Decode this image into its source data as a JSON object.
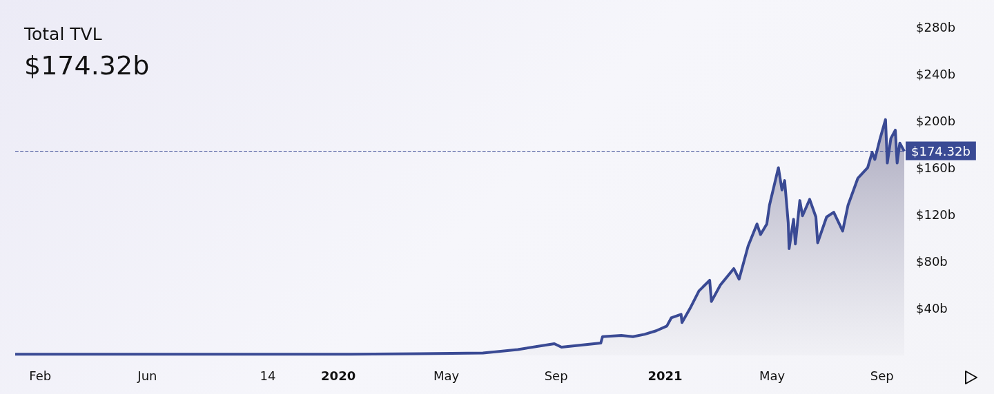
{
  "chart_data": {
    "type": "area",
    "title": "Total TVL",
    "subtitle": "$174.32b",
    "x": [
      "2019-01-04",
      "2019-06-01",
      "2019-10-01",
      "2020-01-01",
      "2020-04-01",
      "2020-06-11",
      "2020-07-20",
      "2020-08-30",
      "2020-09-07",
      "2020-10-21",
      "2020-10-23",
      "2020-11-13",
      "2020-11-26",
      "2020-12-09",
      "2020-12-22",
      "2021-01-03",
      "2021-01-08",
      "2021-01-19",
      "2021-01-20",
      "2021-01-29",
      "2021-02-08",
      "2021-02-20",
      "2021-02-22",
      "2021-03-04",
      "2021-03-19",
      "2021-03-25",
      "2021-04-04",
      "2021-04-14",
      "2021-04-18",
      "2021-04-25",
      "2021-04-28",
      "2021-05-08",
      "2021-05-12",
      "2021-05-15",
      "2021-05-19",
      "2021-05-20",
      "2021-05-25",
      "2021-05-27",
      "2021-06-01",
      "2021-06-04",
      "2021-06-12",
      "2021-06-19",
      "2021-06-21",
      "2021-07-01",
      "2021-07-09",
      "2021-07-19",
      "2021-07-25",
      "2021-08-05",
      "2021-08-16",
      "2021-08-21",
      "2021-08-24",
      "2021-08-30",
      "2021-09-05",
      "2021-09-07",
      "2021-09-11",
      "2021-09-16",
      "2021-09-18",
      "2021-09-21",
      "2021-09-26"
    ],
    "series": [
      {
        "color": "#3a4a94",
        "values": [
          1,
          1,
          1,
          1,
          1.5,
          2,
          5,
          10,
          7,
          10.5,
          16,
          17,
          16,
          18,
          21,
          25,
          32,
          35,
          28,
          40,
          55,
          64,
          46,
          60,
          74,
          65,
          93,
          112,
          103,
          112,
          128,
          160,
          141,
          149,
          113,
          91,
          116,
          95,
          132,
          119,
          133,
          118,
          96,
          118,
          122,
          106,
          128,
          151,
          160,
          173,
          167,
          185,
          201,
          164,
          185,
          192,
          164,
          181,
          174
        ]
      }
    ],
    "xlim": [
      "2019-01-04",
      "2021-09-26"
    ],
    "xticks": [
      {
        "value": "2019-02-01",
        "label": "Feb"
      },
      {
        "value": "2019-06-01",
        "label": "Jun"
      },
      {
        "value": "2019-10-14",
        "label": "14"
      },
      {
        "value": "2020-01-01",
        "label": "2020"
      },
      {
        "value": "2020-05-01",
        "label": "May"
      },
      {
        "value": "2020-09-01",
        "label": "Sep"
      },
      {
        "value": "2021-01-01",
        "label": "2021"
      },
      {
        "value": "2021-05-01",
        "label": "May"
      },
      {
        "value": "2021-09-01",
        "label": "Sep"
      }
    ],
    "ylim": [
      0,
      280
    ],
    "yticks": [
      {
        "value": 40,
        "label": "$40b"
      },
      {
        "value": 80,
        "label": "$80b"
      },
      {
        "value": 120,
        "label": "$120b"
      },
      {
        "value": 160,
        "label": "$160b"
      },
      {
        "value": 200,
        "label": "$200b"
      },
      {
        "value": 240,
        "label": "$240b"
      },
      {
        "value": 280,
        "label": "$280b"
      }
    ],
    "ref_lines": [
      {
        "axis": "y",
        "value": 174.32,
        "label": "$174.32b",
        "color": "#3a4a94",
        "line_style": "dashed"
      }
    ],
    "grid": false
  }
}
